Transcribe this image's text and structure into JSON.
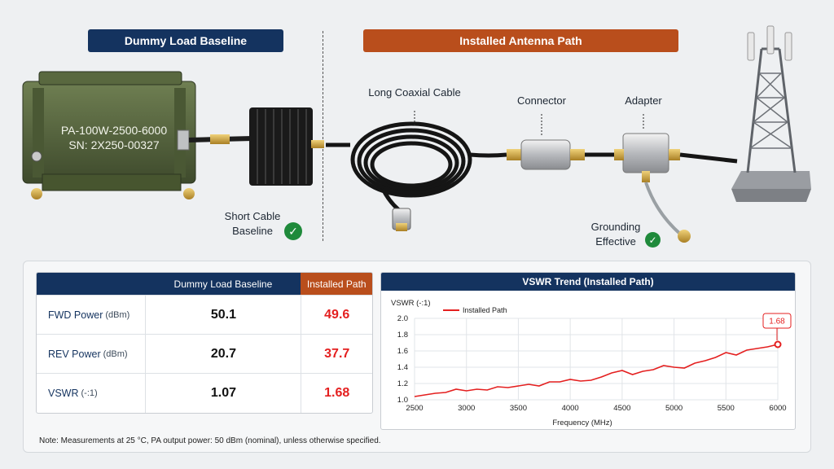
{
  "header": {
    "left_banner": "Dummy Load Baseline",
    "right_banner": "Installed Antenna Path"
  },
  "diagram": {
    "pa_label_line1": "PA-100W-2500-6000",
    "pa_label_line2": "SN: 2X250-00327",
    "short_cable_line1": "Short Cable",
    "short_cable_line2": "Baseline",
    "long_cable": "Long Coaxial Cable",
    "connector": "Connector",
    "adapter": "Adapter",
    "grounding_line1": "Grounding",
    "grounding_line2": "Effective",
    "check_glyph": "✓"
  },
  "table": {
    "headers": [
      "",
      "Dummy Load Baseline",
      "Installed Path"
    ],
    "rows": [
      {
        "label": "FWD Power",
        "unit": "(dBm)",
        "baseline": "50.1",
        "installed": "49.6"
      },
      {
        "label": "REV Power",
        "unit": "(dBm)",
        "baseline": "20.7",
        "installed": "37.7"
      },
      {
        "label": "VSWR",
        "unit": "(-:1)",
        "baseline": "1.07",
        "installed": "1.68"
      }
    ]
  },
  "note": "Note: Measurements at 25 °C, PA output power: 50 dBm (nominal), unless otherwise specified.",
  "colors": {
    "navy": "#14335f",
    "orange": "#b94e1c",
    "red": "#e41f1f",
    "green": "#1f8a3b"
  },
  "chart_data": {
    "type": "line",
    "title": "VSWR Trend (Installed Path)",
    "xlabel": "Frequency (MHz)",
    "ylabel": "VSWR (-:1)",
    "xlim": [
      2500,
      6000
    ],
    "ylim": [
      1.0,
      2.0
    ],
    "xticks": [
      2500,
      3000,
      3500,
      4000,
      4500,
      5000,
      5500,
      6000
    ],
    "yticks": [
      1.0,
      1.2,
      1.4,
      1.6,
      1.8,
      2.0
    ],
    "ytick_labels": [
      "1.0",
      "1.2",
      "1.4",
      "1.6",
      "1.8",
      "2.0"
    ],
    "grid": true,
    "legend_position": "top-left",
    "annotation": "1.68",
    "series": [
      {
        "name": "Installed Path",
        "color": "#e41f1f",
        "x": [
          2500,
          2600,
          2700,
          2800,
          2900,
          3000,
          3100,
          3200,
          3300,
          3400,
          3500,
          3600,
          3700,
          3800,
          3900,
          4000,
          4100,
          4200,
          4300,
          4400,
          4500,
          4600,
          4700,
          4800,
          4900,
          5000,
          5100,
          5200,
          5300,
          5400,
          5500,
          5600,
          5700,
          5800,
          5900,
          6000
        ],
        "values": [
          1.04,
          1.06,
          1.08,
          1.09,
          1.13,
          1.11,
          1.13,
          1.12,
          1.16,
          1.15,
          1.17,
          1.19,
          1.17,
          1.22,
          1.22,
          1.25,
          1.23,
          1.24,
          1.28,
          1.33,
          1.36,
          1.31,
          1.35,
          1.37,
          1.42,
          1.4,
          1.39,
          1.45,
          1.48,
          1.52,
          1.58,
          1.55,
          1.61,
          1.63,
          1.65,
          1.68
        ]
      }
    ]
  }
}
